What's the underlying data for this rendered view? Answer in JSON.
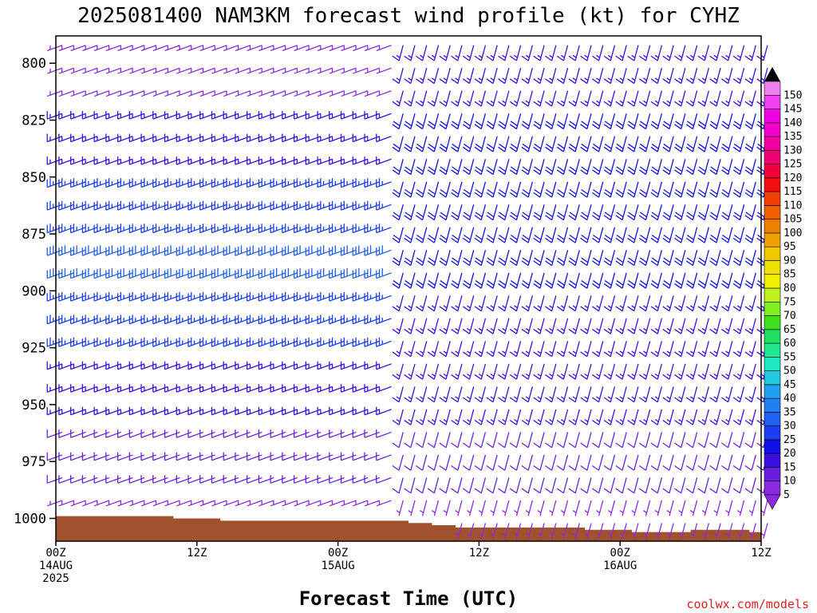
{
  "title": "2025081400 NAM3KM forecast wind profile (kt) for CYHZ",
  "credit": "coolwx.com/models",
  "colors": {
    "ground": "#a0522d",
    "background": "#ffffff",
    "credit": "#e0201e"
  },
  "colorbar": {
    "labels": [
      "5",
      "10",
      "15",
      "20",
      "25",
      "30",
      "35",
      "40",
      "45",
      "50",
      "55",
      "60",
      "65",
      "70",
      "75",
      "80",
      "85",
      "90",
      "95",
      "100",
      "105",
      "110",
      "115",
      "120",
      "125",
      "130",
      "135",
      "140",
      "145",
      "150"
    ],
    "colors": [
      "#8a2be2",
      "#6a1fe0",
      "#3a10e0",
      "#1010e6",
      "#1a3ef0",
      "#2060f0",
      "#2080f0",
      "#20a0f0",
      "#20c8e0",
      "#20e8c0",
      "#20e890",
      "#20e060",
      "#40e020",
      "#80f020",
      "#c0f020",
      "#f0f000",
      "#f0e000",
      "#f0c800",
      "#f0a000",
      "#f08000",
      "#f06000",
      "#f04000",
      "#f01010",
      "#f0003c",
      "#f00070",
      "#f000a0",
      "#f000c8",
      "#f000e6",
      "#f040f0",
      "#f080f0"
    ]
  },
  "chart_data": {
    "type": "wind-barb profile (time-height)",
    "title": "2025081400 NAM3KM forecast wind profile (kt) for CYHZ",
    "xlabel": "Forecast Time (UTC)",
    "ylabel": "",
    "units": "kt",
    "x_ticks": [
      {
        "hour": 0,
        "line1": "00Z",
        "line2": "14AUG",
        "line3": "2025"
      },
      {
        "hour": 12,
        "line1": "12Z",
        "line2": "",
        "line3": ""
      },
      {
        "hour": 24,
        "line1": "00Z",
        "line2": "15AUG",
        "line3": ""
      },
      {
        "hour": 36,
        "line1": "12Z",
        "line2": "",
        "line3": ""
      },
      {
        "hour": 48,
        "line1": "00Z",
        "line2": "16AUG",
        "line3": ""
      },
      {
        "hour": 60,
        "line1": "12Z",
        "line2": "",
        "line3": ""
      }
    ],
    "y_ticks": [
      "800",
      "825",
      "850",
      "875",
      "900",
      "925",
      "950",
      "975",
      "1000"
    ],
    "y_tick_values": [
      800,
      825,
      850,
      875,
      900,
      925,
      950,
      975,
      1000
    ],
    "xlim_hours": [
      0,
      60
    ],
    "ylim_hpa": [
      788,
      1010
    ],
    "barb_levels_hpa": [
      790,
      800,
      810,
      820,
      830,
      840,
      850,
      860,
      870,
      880,
      890,
      900,
      910,
      920,
      930,
      940,
      950,
      960,
      970,
      980,
      990,
      1000
    ],
    "segments": [
      {
        "from_hour": 0,
        "to_hour": 28,
        "direction_deg": 250,
        "speed_kt": [
          5,
          15,
          25,
          30,
          25,
          15,
          10,
          5
        ],
        "note": "WSW flow, strongest mid-levels"
      },
      {
        "from_hour": 29,
        "to_hour": 60,
        "direction_deg": 195,
        "speed_kt": [
          15,
          20,
          20,
          20,
          15,
          15,
          10,
          5
        ],
        "note": "SSW flow after frontal passage"
      }
    ],
    "surface_pressure_hpa": [
      {
        "hour": 0,
        "p": 999
      },
      {
        "hour": 8,
        "p": 999
      },
      {
        "hour": 10,
        "p": 1000
      },
      {
        "hour": 12,
        "p": 1000
      },
      {
        "hour": 14,
        "p": 1001
      },
      {
        "hour": 26,
        "p": 1001
      },
      {
        "hour": 30,
        "p": 1002
      },
      {
        "hour": 32,
        "p": 1003
      },
      {
        "hour": 34,
        "p": 1004
      },
      {
        "hour": 42,
        "p": 1004
      },
      {
        "hour": 45,
        "p": 1005
      },
      {
        "hour": 48,
        "p": 1005
      },
      {
        "hour": 49,
        "p": 1006
      },
      {
        "hour": 53,
        "p": 1006
      },
      {
        "hour": 54,
        "p": 1005
      },
      {
        "hour": 58,
        "p": 1005
      },
      {
        "hour": 59,
        "p": 1006
      },
      {
        "hour": 60,
        "p": 1006
      }
    ]
  }
}
